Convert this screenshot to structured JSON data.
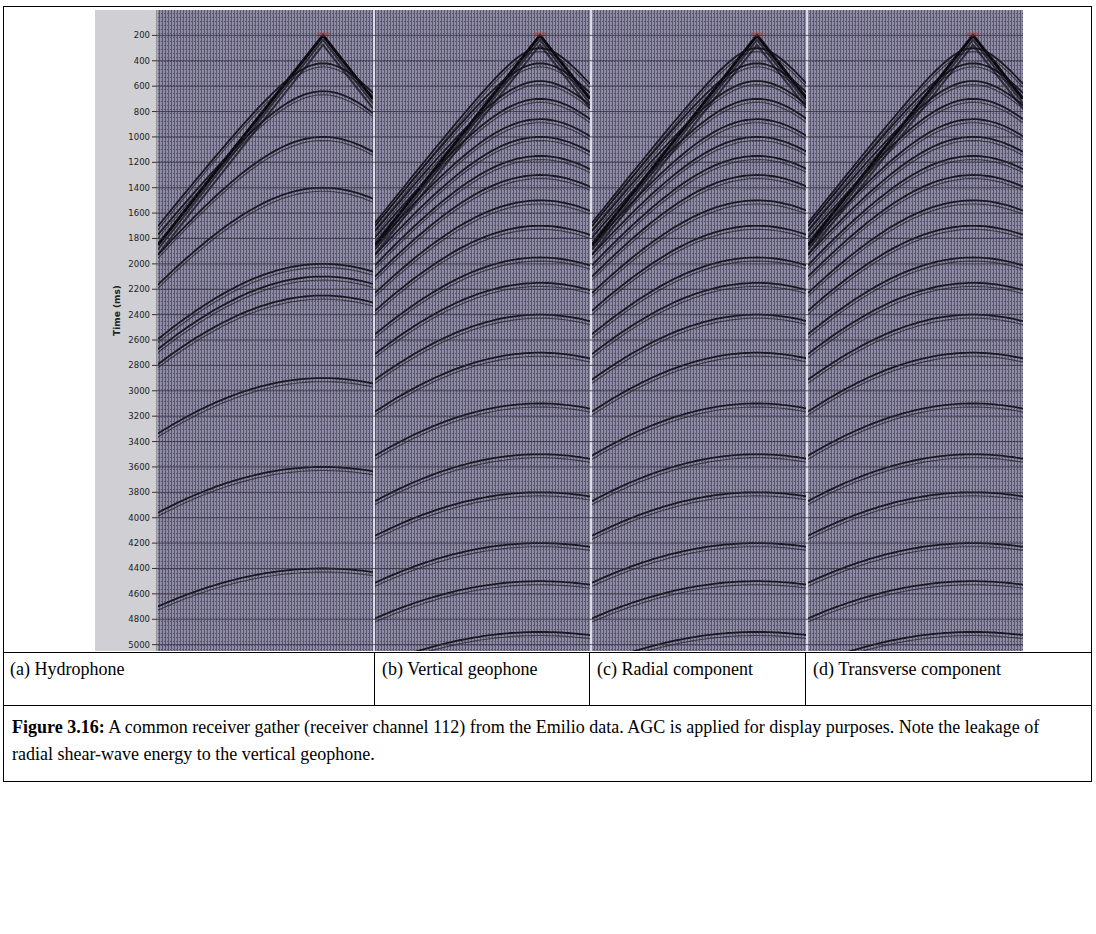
{
  "chart_data": {
    "type": "seismic",
    "y_label": "Time (ms)",
    "ylim": [
      0,
      5050
    ],
    "yticks": [
      200,
      400,
      600,
      800,
      1000,
      1200,
      1400,
      1600,
      1800,
      2000,
      2200,
      2400,
      2600,
      2800,
      3000,
      3200,
      3400,
      3600,
      3800,
      4000,
      4200,
      4400,
      4600,
      4800,
      5000
    ],
    "grid": true,
    "panels": [
      {
        "first_arrival": {
          "apex": 200,
          "left_edge": 1850,
          "right_edge": 700
        },
        "reflection_apex_times": [
          420,
          640,
          1000,
          1400,
          2000,
          2100,
          2250,
          2900,
          3600,
          4400
        ]
      },
      {
        "first_arrival": {
          "apex": 200,
          "left_edge": 1850,
          "right_edge": 700
        },
        "reflection_apex_times": [
          300,
          420,
          560,
          700,
          860,
          1000,
          1150,
          1300,
          1500,
          1700,
          1950,
          2150,
          2400,
          2700,
          3100,
          3500,
          3800,
          4200,
          4500,
          4900
        ]
      },
      {
        "first_arrival": {
          "apex": 200,
          "left_edge": 1850,
          "right_edge": 700
        },
        "reflection_apex_times": [
          300,
          420,
          560,
          700,
          860,
          1000,
          1150,
          1300,
          1500,
          1700,
          1950,
          2150,
          2400,
          2700,
          3100,
          3500,
          3800,
          4200,
          4500,
          4900
        ]
      },
      {
        "first_arrival": {
          "apex": 200,
          "left_edge": 1850,
          "right_edge": 700
        },
        "reflection_apex_times": [
          300,
          420,
          560,
          700,
          860,
          1000,
          1150,
          1300,
          1500,
          1700,
          1950,
          2150,
          2400,
          2700,
          3100,
          3500,
          3800,
          4200,
          4500,
          4900
        ]
      }
    ]
  },
  "panel_labels": [
    "(a) Hydrophone",
    "(b) Vertical geophone",
    "(c) Radial component",
    "(d) Transverse component"
  ],
  "caption": {
    "label": "Figure 3.16:",
    "text": "A common receiver gather (receiver channel 112) from the Emilio data. AGC is applied for display purposes. Note the leakage of radial shear-wave energy to the vertical geophone."
  }
}
